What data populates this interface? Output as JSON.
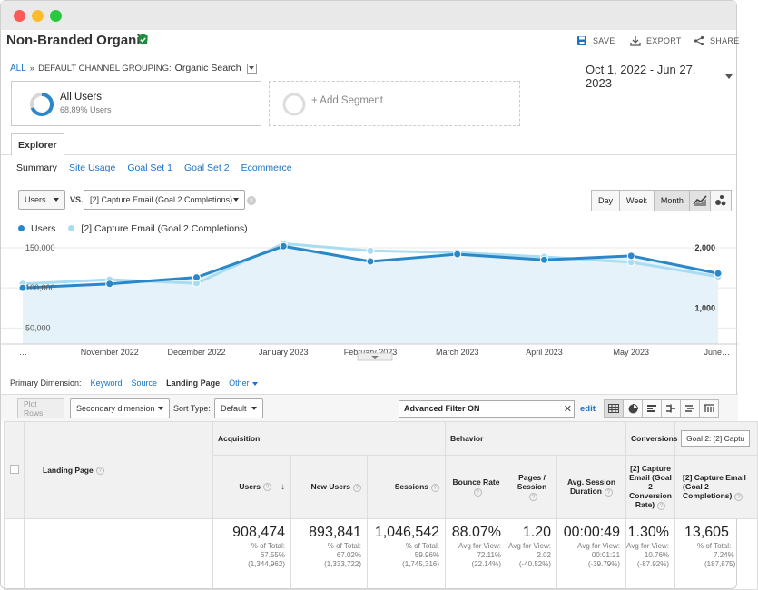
{
  "window": {
    "title": "Non-Branded Organic"
  },
  "header": {
    "save": "SAVE",
    "export": "EXPORT",
    "share": "SHARE"
  },
  "breadcrumb": {
    "all": "ALL",
    "sep": "»",
    "grouping": "DEFAULT CHANNEL GROUPING:",
    "value": "Organic Search"
  },
  "date_range": "Oct 1, 2022 - Jun 27, 2023",
  "segments": {
    "active": {
      "name": "All Users",
      "pct": "68.89% Users",
      "fraction": 0.6889
    },
    "add": "+ Add Segment"
  },
  "tabs": {
    "explorer": "Explorer"
  },
  "subtabs": [
    "Summary",
    "Site Usage",
    "Goal Set 1",
    "Goal Set 2",
    "Ecommerce"
  ],
  "controls": {
    "metric1": "Users",
    "vs": "VS.",
    "metric2": "[2] Capture Email (Goal 2 Completions)",
    "day": "Day",
    "week": "Week",
    "month": "Month"
  },
  "legend": {
    "s1": "Users",
    "s2": "[2] Capture Email (Goal 2 Completions)"
  },
  "colors": {
    "s1": "#2a88c8",
    "s2": "#a8dcf0",
    "link": "#1a73c7"
  },
  "chart_data": {
    "type": "line",
    "categories": [
      "…",
      "November 2022",
      "December 2022",
      "January 2023",
      "February 2023",
      "March 2023",
      "April 2023",
      "May 2023",
      "June…"
    ],
    "series": [
      {
        "name": "Users",
        "axis": "left",
        "values": [
          100000,
          105000,
          113000,
          152000,
          133000,
          142000,
          135000,
          140000,
          118000
        ]
      },
      {
        "name": "[2] Capture Email (Goal 2 Completions)",
        "axis": "right",
        "values": [
          1400,
          1470,
          1410,
          2070,
          1950,
          1920,
          1850,
          1760,
          1520
        ]
      }
    ],
    "y_left": {
      "ticks": [
        "150,000",
        "100,000",
        "50,000"
      ],
      "tick_values": [
        150000,
        100000,
        50000
      ]
    },
    "y_right": {
      "ticks": [
        "2,000",
        "1,000"
      ],
      "tick_values": [
        2000,
        1000
      ]
    }
  },
  "primary_dimension": {
    "label": "Primary Dimension:",
    "items": [
      "Keyword",
      "Source",
      "Landing Page",
      "Other"
    ]
  },
  "table_controls": {
    "plot_rows": "Plot Rows",
    "secondary": "Secondary dimension",
    "sort_label": "Sort Type:",
    "sort_value": "Default",
    "filter": "Advanced Filter ON",
    "edit": "edit"
  },
  "table": {
    "groups": {
      "acquisition": "Acquisition",
      "behavior": "Behavior",
      "conversions": "Conversions",
      "goal_select": "Goal 2: [2] Captu"
    },
    "dim_header": "Landing Page",
    "columns": [
      "Users",
      "New Users",
      "Sessions",
      "Bounce Rate",
      "Pages / Session",
      "Avg. Session Duration",
      "[2] Capture Email (Goal 2 Conversion Rate)",
      "[2] Capture Email (Goal 2 Completions)"
    ],
    "totals": [
      {
        "big": "908,474",
        "l1": "% of Total:",
        "l2": "67.55%",
        "l3": "(1,344,962)"
      },
      {
        "big": "893,841",
        "l1": "% of Total:",
        "l2": "67.02%",
        "l3": "(1,333,722)"
      },
      {
        "big": "1,046,542",
        "l1": "% of Total:",
        "l2": "59.96%",
        "l3": "(1,745,316)"
      },
      {
        "big": "88.07%",
        "l1": "Avg for View:",
        "l2": "72.11%",
        "l3": "(22.14%)"
      },
      {
        "big": "1.20",
        "l1": "Avg for View:",
        "l2": "2.02",
        "l3": "(-40.52%)"
      },
      {
        "big": "00:00:49",
        "l1": "Avg for View:",
        "l2": "00:01:21",
        "l3": "(-39.79%)"
      },
      {
        "big": "1.30%",
        "l1": "Avg for View:",
        "l2": "10.76%",
        "l3": "(-87.92%)"
      },
      {
        "big": "13,605",
        "l1": "% of Total:",
        "l2": "7.24%",
        "l3": "(187,875)"
      }
    ]
  }
}
